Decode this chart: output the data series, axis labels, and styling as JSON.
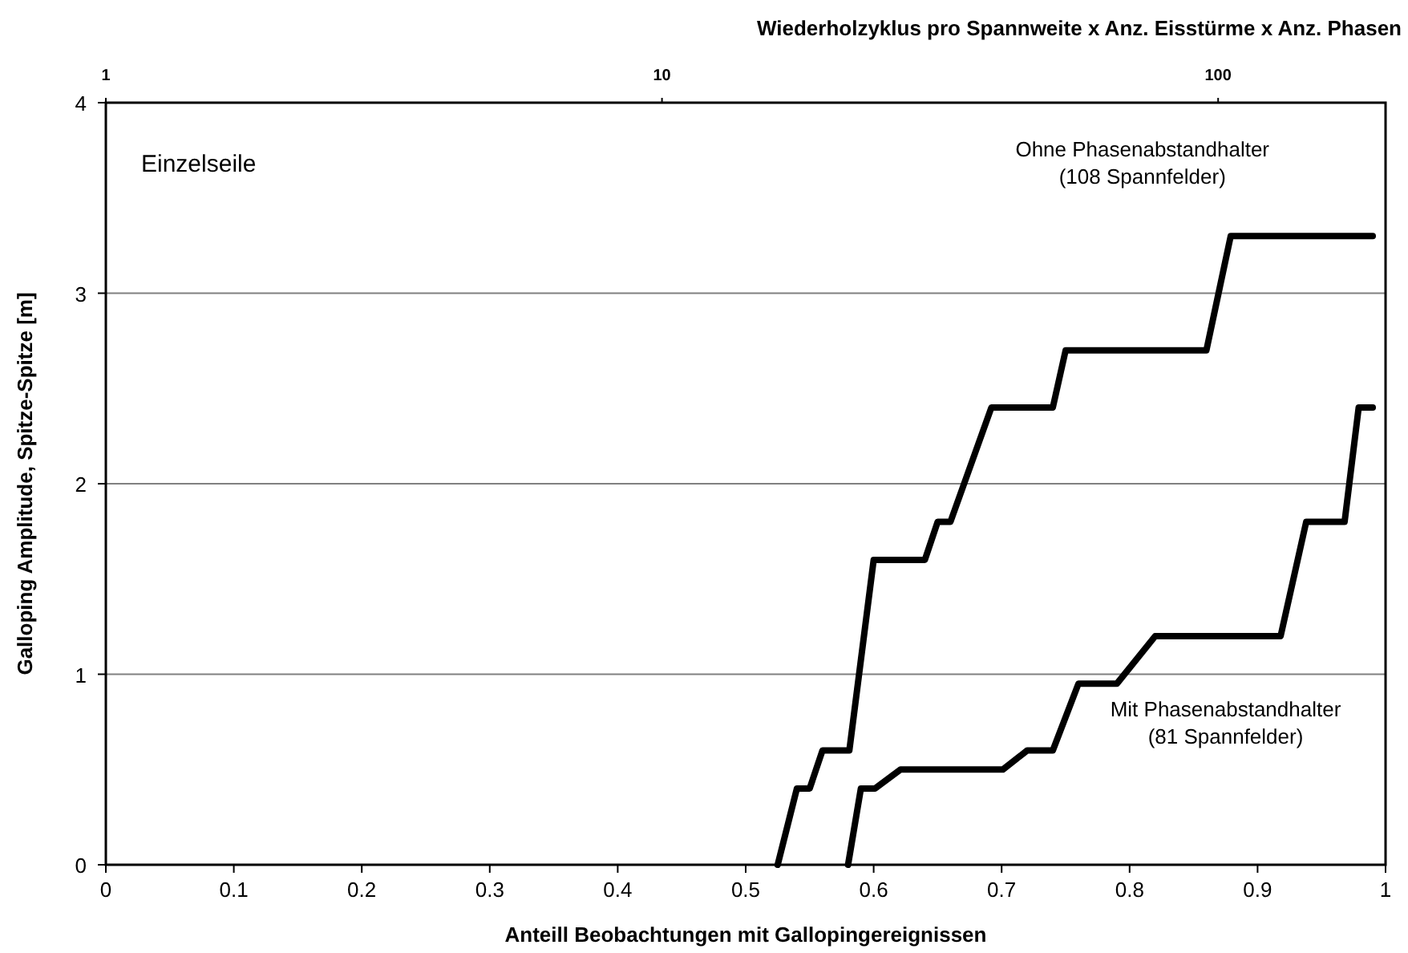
{
  "chart_data": {
    "type": "line",
    "xlabel": "Anteill Beobachtungen mit Gallopingereignissen",
    "ylabel": "Galloping Amplitude, Spitze-Spitze  [m]",
    "x2label": "Wiederholzyklus pro Spannweite x Anz. Eisstürme x Anz. Phasen",
    "annotations": [
      "Einzelseile"
    ],
    "xlim": [
      0,
      1
    ],
    "xticks": [
      0,
      0.1,
      0.2,
      0.3,
      0.4,
      0.5,
      0.6,
      0.7,
      0.8,
      0.9,
      1
    ],
    "ylim": [
      0,
      4
    ],
    "yticks": [
      0,
      1,
      2,
      3,
      4
    ],
    "x2lim": [
      1,
      200
    ],
    "x2ticks": [
      1,
      10,
      100
    ],
    "log": "x2",
    "grid": "y",
    "marker": "none",
    "line_style": "solid",
    "series": [
      {
        "name": "Ohne Phasenabstandhalter\n(108 Spannfelder)",
        "color": "#000000",
        "x": [
          0.525,
          0.54,
          0.55,
          0.56,
          0.581,
          0.6,
          0.64,
          0.65,
          0.66,
          0.692,
          0.74,
          0.75,
          0.86,
          0.879,
          0.99
        ],
        "values": [
          0,
          0.4,
          0.4,
          0.6,
          0.6,
          1.6,
          1.6,
          1.8,
          1.8,
          2.4,
          2.4,
          2.7,
          2.7,
          3.3,
          3.3
        ]
      },
      {
        "name": "Mit Phasenabstandhalter\n(81 Spannfelder)",
        "color": "#000000",
        "x": [
          0.58,
          0.59,
          0.601,
          0.621,
          0.701,
          0.72,
          0.74,
          0.76,
          0.79,
          0.82,
          0.918,
          0.938,
          0.968,
          0.979,
          0.99
        ],
        "values": [
          0,
          0.4,
          0.4,
          0.5,
          0.5,
          0.6,
          0.6,
          0.95,
          0.95,
          1.2,
          1.2,
          1.8,
          1.8,
          2.4,
          2.4
        ]
      }
    ]
  }
}
